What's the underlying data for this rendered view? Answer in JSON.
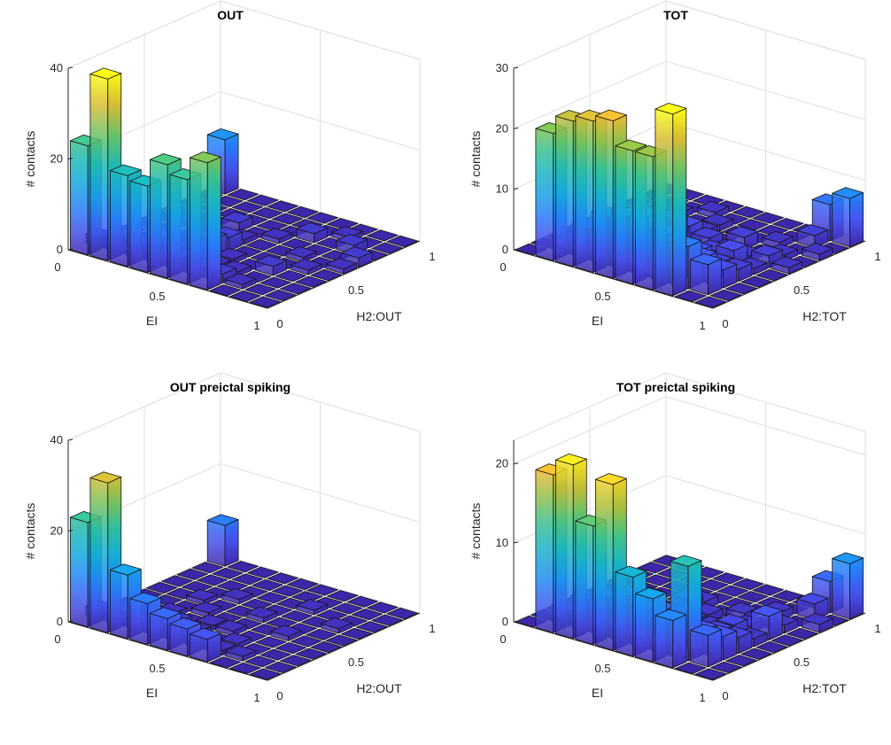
{
  "figure": {
    "panels": [
      {
        "title": "OUT",
        "zlabel": "# contacts",
        "xlabel": "EI",
        "ylabel": "H2:OUT"
      },
      {
        "title": "TOT",
        "zlabel": "# contacts",
        "xlabel": "EI",
        "ylabel": "H2:TOT"
      },
      {
        "title": "OUT preictal spiking",
        "zlabel": "# contacts",
        "xlabel": "EI",
        "ylabel": "H2:OUT"
      },
      {
        "title": "TOT preictal spiking",
        "zlabel": "# contacts",
        "xlabel": "EI",
        "ylabel": "H2:TOT"
      }
    ]
  },
  "chart_data": [
    {
      "type": "bar3",
      "title": "OUT",
      "xlabel": "EI",
      "ylabel": "H2:OUT",
      "zlabel": "# contacts",
      "x_ticks": [
        "0",
        "0.5",
        "1"
      ],
      "y_ticks": [
        "0",
        "0.5",
        "1"
      ],
      "z_ticks": [
        "0",
        "20",
        "40"
      ],
      "zlim": [
        0,
        40
      ],
      "grid": true,
      "colormap": "parula",
      "bins": 10,
      "values": [
        [
          24,
          2,
          0,
          0,
          0,
          0,
          0,
          0,
          0,
          12
        ],
        [
          40,
          4,
          1,
          0,
          0,
          1,
          0,
          0,
          0,
          0
        ],
        [
          20,
          3,
          2,
          1,
          0,
          1,
          0,
          0,
          0,
          0
        ],
        [
          19,
          6,
          2,
          1,
          0,
          0,
          2,
          0,
          0,
          0
        ],
        [
          25,
          3,
          3,
          4,
          3,
          1,
          0,
          0,
          0,
          0
        ],
        [
          23,
          2,
          1,
          1,
          0,
          0,
          1,
          0,
          0,
          0
        ],
        [
          28,
          2,
          1,
          0,
          0,
          0,
          0,
          2,
          0,
          0
        ],
        [
          0,
          1,
          0,
          2,
          0,
          1,
          0,
          0,
          1,
          0
        ],
        [
          0,
          0,
          0,
          0,
          1,
          0,
          0,
          2,
          0,
          0
        ],
        [
          0,
          0,
          0,
          0,
          0,
          1,
          2,
          0,
          0,
          0
        ]
      ]
    },
    {
      "type": "bar3",
      "title": "TOT",
      "xlabel": "EI",
      "ylabel": "H2:TOT",
      "zlabel": "# contacts",
      "x_ticks": [
        "0",
        "0.5",
        "1"
      ],
      "y_ticks": [
        "0",
        "0.5",
        "1"
      ],
      "z_ticks": [
        "0",
        "10",
        "20",
        "30"
      ],
      "zlim": [
        0,
        30
      ],
      "grid": true,
      "colormap": "parula",
      "bins": 10,
      "values": [
        [
          0,
          0,
          0,
          0,
          0,
          0,
          0,
          0,
          0,
          0
        ],
        [
          21,
          2,
          0,
          0,
          0,
          1,
          0,
          0,
          0,
          0
        ],
        [
          24,
          5,
          2,
          1,
          0,
          0,
          0,
          1,
          0,
          0
        ],
        [
          25,
          8,
          4,
          3,
          2,
          0,
          0,
          0,
          1,
          0
        ],
        [
          26,
          9,
          3,
          2,
          5,
          3,
          1,
          1,
          0,
          0
        ],
        [
          22,
          10,
          5,
          3,
          1,
          2,
          0,
          0,
          0,
          0
        ],
        [
          22,
          8,
          4,
          3,
          2,
          1,
          2,
          0,
          0,
          0
        ],
        [
          30,
          7,
          4,
          2,
          3,
          1,
          0,
          1,
          0,
          0
        ],
        [
          0,
          5,
          3,
          2,
          1,
          2,
          1,
          0,
          2,
          6
        ],
        [
          0,
          0,
          0,
          0,
          0,
          1,
          0,
          1,
          0,
          8
        ]
      ]
    },
    {
      "type": "bar3",
      "title": "OUT preictal spiking",
      "xlabel": "EI",
      "ylabel": "H2:OUT",
      "zlabel": "# contacts",
      "x_ticks": [
        "0",
        "0.5",
        "1"
      ],
      "y_ticks": [
        "0",
        "0.5",
        "1"
      ],
      "z_ticks": [
        "0",
        "20",
        "40"
      ],
      "zlim": [
        0,
        40
      ],
      "grid": true,
      "colormap": "parula",
      "bins": 10,
      "values": [
        [
          23,
          2,
          0,
          0,
          0,
          0,
          0,
          0,
          0,
          9
        ],
        [
          33,
          3,
          1,
          0,
          0,
          0,
          0,
          0,
          0,
          0
        ],
        [
          14,
          2,
          1,
          1,
          0,
          1,
          0,
          0,
          0,
          0
        ],
        [
          9,
          4,
          2,
          0,
          1,
          0,
          1,
          0,
          0,
          0
        ],
        [
          7,
          3,
          1,
          1,
          0,
          0,
          0,
          0,
          0,
          0
        ],
        [
          6,
          2,
          0,
          1,
          0,
          1,
          0,
          0,
          0,
          0
        ],
        [
          5,
          1,
          1,
          0,
          0,
          0,
          0,
          1,
          0,
          0
        ],
        [
          0,
          1,
          0,
          0,
          1,
          0,
          0,
          0,
          0,
          0
        ],
        [
          0,
          0,
          0,
          0,
          0,
          0,
          1,
          0,
          0,
          0
        ],
        [
          0,
          0,
          0,
          0,
          0,
          0,
          0,
          0,
          0,
          0
        ]
      ]
    },
    {
      "type": "bar3",
      "title": "TOT preictal spiking",
      "xlabel": "EI",
      "ylabel": "H2:TOT",
      "zlabel": "# contacts",
      "x_ticks": [
        "0",
        "0.5",
        "1"
      ],
      "y_ticks": [
        "0",
        "0.5",
        "1"
      ],
      "z_ticks": [
        "0",
        "10",
        "20"
      ],
      "zlim": [
        0,
        23
      ],
      "grid": true,
      "colormap": "parula",
      "bins": 10,
      "values": [
        [
          0,
          0,
          0,
          0,
          0,
          0,
          0,
          0,
          0,
          0
        ],
        [
          20,
          2,
          0,
          0,
          0,
          0,
          0,
          0,
          0,
          0
        ],
        [
          22,
          4,
          1,
          0,
          0,
          1,
          0,
          0,
          0,
          0
        ],
        [
          15,
          5,
          3,
          2,
          1,
          0,
          0,
          0,
          0,
          0
        ],
        [
          21,
          6,
          4,
          1,
          0,
          2,
          1,
          0,
          0,
          0
        ],
        [
          10,
          5,
          4,
          2,
          1,
          1,
          0,
          0,
          0,
          0
        ],
        [
          8,
          4,
          3,
          1,
          1,
          0,
          1,
          0,
          0,
          0
        ],
        [
          6,
          12,
          3,
          2,
          2,
          1,
          0,
          1,
          0,
          0
        ],
        [
          0,
          4,
          3,
          2,
          1,
          3,
          1,
          0,
          2,
          4
        ],
        [
          0,
          0,
          0,
          0,
          0,
          0,
          0,
          1,
          0,
          7
        ]
      ]
    }
  ]
}
